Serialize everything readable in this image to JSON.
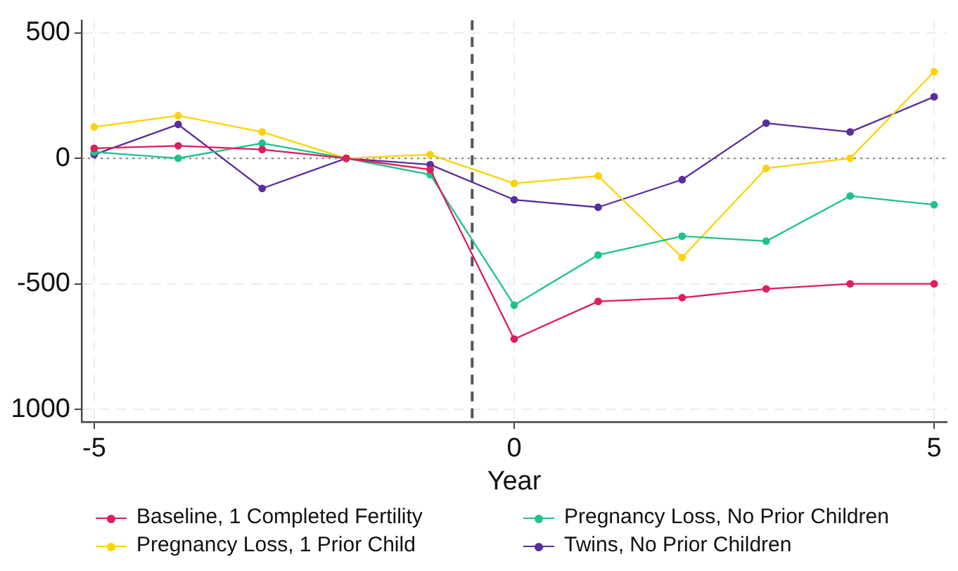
{
  "chart_data": {
    "type": "line",
    "xlabel": "Year",
    "x": [
      -5,
      -4,
      -3,
      -2,
      -1,
      0,
      1,
      2,
      3,
      4,
      5
    ],
    "series": [
      {
        "name": "Baseline, 1 Completed Fertility",
        "color": "#dc1e5a",
        "values": [
          40,
          50,
          35,
          0,
          -45,
          -720,
          -570,
          -555,
          -520,
          -500,
          -500
        ]
      },
      {
        "name": "Pregnancy Loss, No Prior Children",
        "color": "#1ec28b",
        "values": [
          25,
          0,
          60,
          0,
          -65,
          -585,
          -385,
          -310,
          -330,
          -150,
          -185
        ]
      },
      {
        "name": "Pregnancy Loss, 1 Prior Child",
        "color": "#fdd20a",
        "values": [
          125,
          170,
          105,
          0,
          15,
          -100,
          -70,
          -395,
          -40,
          0,
          345
        ]
      },
      {
        "name": "Twins, No Prior Children",
        "color": "#5a2d9c",
        "values": [
          15,
          135,
          -120,
          0,
          -25,
          -165,
          -195,
          -85,
          140,
          105,
          245
        ]
      }
    ],
    "xlim": [
      -5.15,
      5.15
    ],
    "xticks": [
      -5,
      0,
      5
    ],
    "ylim": [
      -1050,
      550
    ],
    "yticks": [
      500,
      0,
      -500,
      {
        "value": -1000,
        "label": "1000"
      }
    ],
    "grid": true,
    "legend": "bottom",
    "marker": "circle",
    "line_style": "solid",
    "ref_lines": [
      {
        "axis": "x",
        "value": -0.5,
        "color": "#555555",
        "line_style": "dashed"
      },
      {
        "axis": "y",
        "value": 0,
        "color": "#808080",
        "line_style": "dotted"
      }
    ]
  }
}
